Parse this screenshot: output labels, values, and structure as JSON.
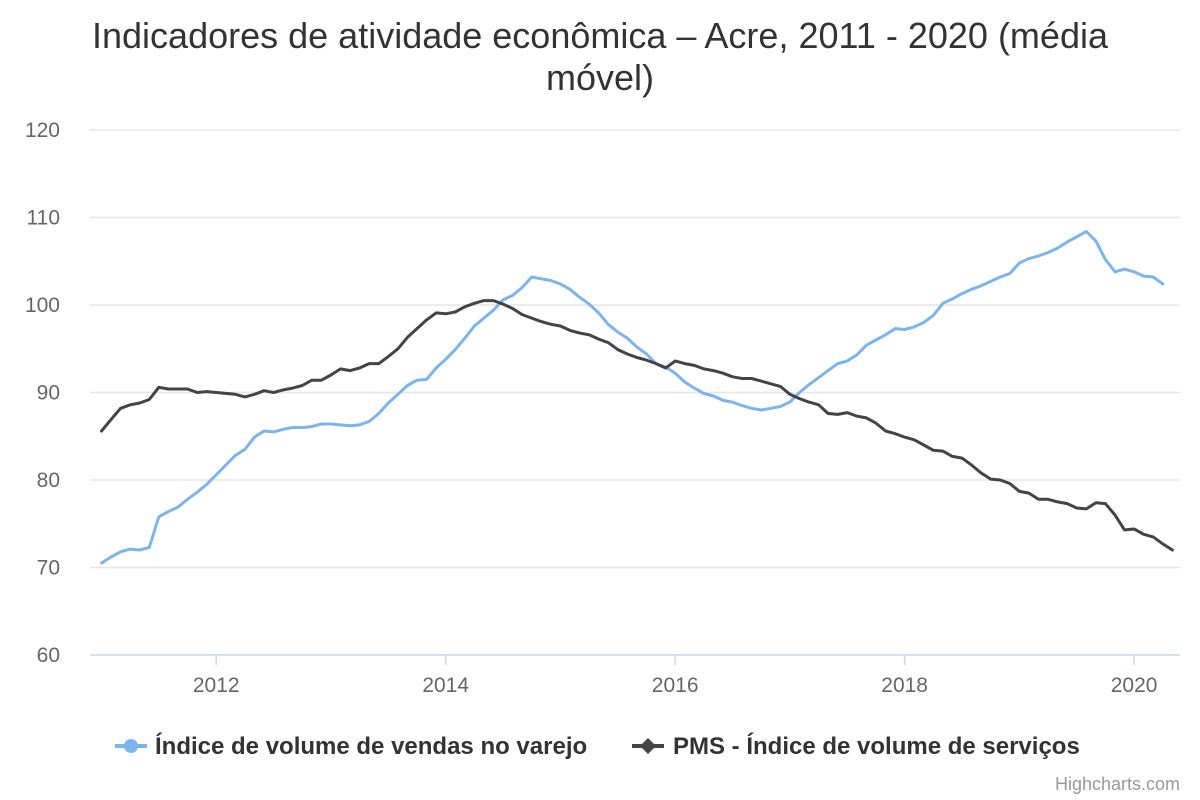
{
  "chart_data": {
    "type": "line",
    "title_lines": [
      "Indicadores de atividade econômica – Acre, 2011 - 2020 (média",
      "móvel)"
    ],
    "xlabel": "",
    "ylabel": "",
    "ylim": [
      60,
      120
    ],
    "y_ticks": [
      "60",
      "70",
      "80",
      "90",
      "100",
      "110",
      "120"
    ],
    "x_ticks": [
      "2012",
      "2014",
      "2016",
      "2018",
      "2020"
    ],
    "x_tick_values": [
      2012,
      2014,
      2016,
      2018,
      2020
    ],
    "x_start": "2011-01",
    "x_end": "2020-05",
    "grid": true,
    "legend_position": "bottom",
    "series": [
      {
        "name": "Índice de volume de vendas no varejo",
        "color": "#7cb5ec",
        "marker": "circle",
        "values": [
          70.5,
          71.2,
          71.8,
          72.1,
          72.0,
          72.3,
          75.8,
          76.4,
          76.9,
          77.8,
          78.6,
          79.5,
          80.6,
          81.7,
          82.8,
          83.5,
          84.9,
          85.6,
          85.5,
          85.8,
          86.0,
          86.0,
          86.1,
          86.4,
          86.4,
          86.3,
          86.2,
          86.3,
          86.7,
          87.6,
          88.8,
          89.8,
          90.8,
          91.4,
          91.5,
          92.8,
          93.8,
          94.9,
          96.2,
          97.6,
          98.5,
          99.4,
          100.6,
          101.1,
          102.0,
          103.2,
          103.0,
          102.8,
          102.4,
          101.8,
          100.9,
          100.1,
          99.1,
          97.8,
          96.9,
          96.2,
          95.2,
          94.4,
          93.3,
          92.9,
          92.2,
          91.2,
          90.5,
          89.9,
          89.6,
          89.1,
          88.9,
          88.5,
          88.2,
          88.0,
          88.2,
          88.4,
          88.9,
          90.0,
          90.9,
          91.7,
          92.5,
          93.3,
          93.6,
          94.3,
          95.4,
          96.0,
          96.6,
          97.3,
          97.2,
          97.5,
          98.0,
          98.8,
          100.2,
          100.7,
          101.3,
          101.8,
          102.2,
          102.7,
          103.2,
          103.6,
          104.8,
          105.3,
          105.6,
          106.0,
          106.5,
          107.2,
          107.8,
          108.4,
          107.3,
          105.2,
          103.8,
          104.1,
          103.8,
          103.3,
          103.2,
          102.4
        ]
      },
      {
        "name": "PMS - Índice de volume de serviços",
        "color": "#434348",
        "marker": "diamond",
        "values": [
          85.6,
          86.9,
          88.2,
          88.6,
          88.8,
          89.2,
          90.6,
          90.4,
          90.4,
          90.4,
          90.0,
          90.1,
          90.0,
          89.9,
          89.8,
          89.5,
          89.8,
          90.2,
          90.0,
          90.3,
          90.5,
          90.8,
          91.4,
          91.4,
          92.0,
          92.7,
          92.5,
          92.8,
          93.3,
          93.3,
          94.1,
          95.0,
          96.3,
          97.3,
          98.3,
          99.1,
          99.0,
          99.2,
          99.8,
          100.2,
          100.5,
          100.5,
          100.1,
          99.6,
          98.9,
          98.5,
          98.1,
          97.8,
          97.6,
          97.1,
          96.8,
          96.6,
          96.1,
          95.7,
          94.9,
          94.4,
          94.0,
          93.7,
          93.3,
          92.8,
          93.6,
          93.3,
          93.1,
          92.7,
          92.5,
          92.2,
          91.8,
          91.6,
          91.6,
          91.3,
          91.0,
          90.7,
          89.8,
          89.3,
          88.9,
          88.6,
          87.6,
          87.5,
          87.7,
          87.3,
          87.1,
          86.5,
          85.6,
          85.3,
          84.9,
          84.6,
          84.0,
          83.4,
          83.3,
          82.7,
          82.5,
          81.7,
          80.8,
          80.1,
          80.0,
          79.6,
          78.7,
          78.5,
          77.8,
          77.8,
          77.5,
          77.3,
          76.8,
          76.7,
          77.4,
          77.3,
          76.0,
          74.3,
          74.4,
          73.8,
          73.5,
          72.7,
          72.0
        ]
      }
    ]
  },
  "credits": "Highcharts.com"
}
